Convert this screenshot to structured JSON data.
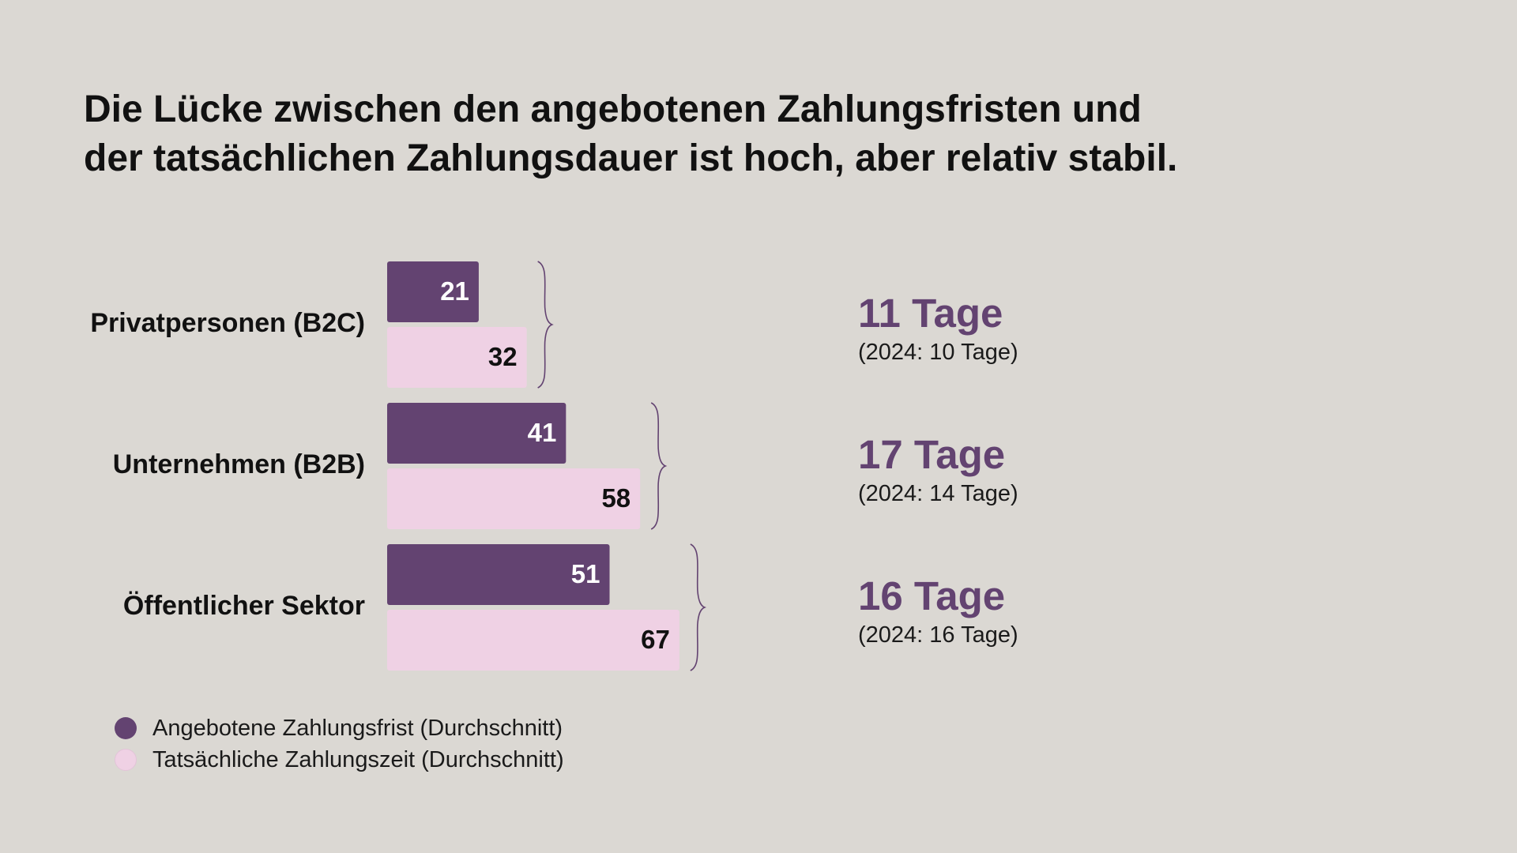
{
  "title_lines": [
    "Die Lücke zwischen den angebotenen Zahlungsfristen und",
    "der tatsächlichen Zahlungsdauer ist hoch, aber relativ stabil."
  ],
  "colors": {
    "offered": "#634371",
    "actual": "#efd1e4",
    "gap_text": "#634371",
    "brace": "#634371",
    "background": "#dbd8d3"
  },
  "chart_data": {
    "type": "bar",
    "orientation": "horizontal",
    "categories": [
      "Privatpersonen (B2C)",
      "Unternehmen (B2B)",
      "Öffentlicher Sektor"
    ],
    "series": [
      {
        "name": "Angebotene Zahlungsfrist (Durchschnitt)",
        "values": [
          21,
          41,
          51
        ]
      },
      {
        "name": "Tatsächliche Zahlungszeit (Durchschnitt)",
        "values": [
          32,
          58,
          67
        ]
      }
    ],
    "annotations": [
      {
        "gap": "11 Tage",
        "previous": "(2024: 10 Tage)"
      },
      {
        "gap": "17 Tage",
        "previous": "(2024: 14 Tage)"
      },
      {
        "gap": "16 Tage",
        "previous": "(2024: 16 Tage)"
      }
    ],
    "legend_position": "bottom-left",
    "grid": false,
    "axes_visible": false
  }
}
